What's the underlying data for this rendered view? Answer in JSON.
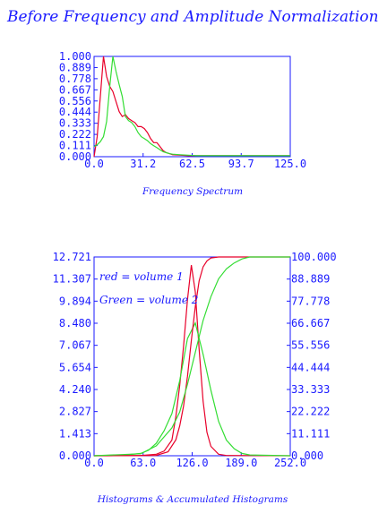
{
  "page_title": "Before Frequency and Amplitude Normalization",
  "colors": {
    "axis": "#1a1aff",
    "red": "#e8002a",
    "green": "#33dd33"
  },
  "chart_data": [
    {
      "type": "line",
      "title": "",
      "xlabel": "Frequency Spectrum",
      "ylabel": "",
      "xlim": [
        0,
        125
      ],
      "ylim": [
        0,
        1
      ],
      "x_ticks": [
        "0.0",
        "31.2",
        "62.5",
        "93.7",
        "125.0"
      ],
      "y_ticks": [
        "0.000",
        "0.111",
        "0.222",
        "0.333",
        "0.444",
        "0.556",
        "0.667",
        "0.778",
        "0.889",
        "1.000"
      ],
      "grid": false,
      "legend": "none",
      "series": [
        {
          "color": "#e8002a",
          "x": [
            0,
            2,
            4,
            6,
            8,
            10,
            12,
            14,
            16,
            18,
            20,
            22,
            24,
            26,
            28,
            30,
            32,
            34,
            36,
            38,
            40,
            42,
            44,
            46,
            48,
            50,
            55,
            60,
            65,
            70,
            80,
            90,
            100,
            110,
            125
          ],
          "y": [
            0.0,
            0.2,
            0.6,
            1.0,
            0.8,
            0.7,
            0.65,
            0.55,
            0.45,
            0.4,
            0.42,
            0.38,
            0.36,
            0.34,
            0.3,
            0.3,
            0.28,
            0.24,
            0.18,
            0.14,
            0.14,
            0.1,
            0.06,
            0.04,
            0.03,
            0.02,
            0.015,
            0.01,
            0.01,
            0.01,
            0.01,
            0.01,
            0.01,
            0.01,
            0.01
          ]
        },
        {
          "color": "#33dd33",
          "x": [
            0,
            2,
            4,
            6,
            8,
            10,
            12,
            14,
            16,
            18,
            20,
            22,
            24,
            26,
            28,
            30,
            32,
            34,
            36,
            38,
            40,
            42,
            44,
            46,
            48,
            50,
            55,
            60,
            65,
            70,
            80,
            90,
            100,
            110,
            125
          ],
          "y": [
            0.1,
            0.12,
            0.15,
            0.2,
            0.35,
            0.7,
            1.0,
            0.85,
            0.72,
            0.6,
            0.4,
            0.36,
            0.34,
            0.3,
            0.24,
            0.2,
            0.18,
            0.16,
            0.13,
            0.11,
            0.09,
            0.07,
            0.05,
            0.04,
            0.03,
            0.025,
            0.02,
            0.015,
            0.01,
            0.01,
            0.01,
            0.01,
            0.01,
            0.01,
            0.01
          ]
        }
      ]
    },
    {
      "type": "line",
      "title": "",
      "xlabel": "Histograms & Accumulated Histograms",
      "ylabel": "",
      "xlim": [
        0,
        252
      ],
      "ylim": [
        0,
        12.721
      ],
      "y2lim": [
        0,
        100
      ],
      "x_ticks": [
        "0.0",
        "63.0",
        "126.0",
        "189.0",
        "252.0"
      ],
      "y_ticks": [
        "0.000",
        "1.413",
        "2.827",
        "4.240",
        "5.654",
        "7.067",
        "8.480",
        "9.894",
        "11.307",
        "12.721"
      ],
      "y2_ticks": [
        "0.000",
        "11.111",
        "22.222",
        "33.333",
        "44.444",
        "55.556",
        "66.667",
        "77.778",
        "88.889",
        "100.000"
      ],
      "grid": false,
      "legend": "top-left",
      "legend_entries": [
        "red = volume 1",
        "Green = volume 2"
      ],
      "series": [
        {
          "name": "red = volume 1",
          "kind": "histogram",
          "color": "#e8002a",
          "x": [
            0,
            60,
            80,
            90,
            100,
            105,
            110,
            115,
            120,
            125,
            130,
            135,
            140,
            145,
            150,
            160,
            170,
            252
          ],
          "y": [
            0,
            0.02,
            0.1,
            0.3,
            1.0,
            2.5,
            4.5,
            7.0,
            10.0,
            12.2,
            10.5,
            6.8,
            3.5,
            1.5,
            0.6,
            0.1,
            0.02,
            0
          ]
        },
        {
          "name": "Green = volume 2",
          "kind": "histogram",
          "color": "#33dd33",
          "x": [
            0,
            40,
            60,
            70,
            80,
            90,
            100,
            110,
            120,
            130,
            140,
            150,
            160,
            170,
            180,
            190,
            200,
            252
          ],
          "y": [
            0,
            0.05,
            0.15,
            0.35,
            0.8,
            1.6,
            2.7,
            4.8,
            7.5,
            8.5,
            6.5,
            4.2,
            2.2,
            1.0,
            0.45,
            0.15,
            0.05,
            0
          ]
        },
        {
          "name": "red = volume 1",
          "kind": "accumulated",
          "axis": "right",
          "color": "#e8002a",
          "x": [
            0,
            80,
            95,
            105,
            110,
            115,
            120,
            125,
            130,
            135,
            140,
            145,
            150,
            160,
            252
          ],
          "y2": [
            0,
            0.2,
            2,
            8,
            15,
            25,
            40,
            58,
            75,
            88,
            95,
            98,
            99.5,
            100,
            100
          ]
        },
        {
          "name": "Green = volume 2",
          "kind": "accumulated",
          "axis": "right",
          "color": "#33dd33",
          "x": [
            0,
            60,
            80,
            100,
            110,
            120,
            130,
            140,
            150,
            160,
            170,
            180,
            190,
            200,
            252
          ],
          "y2": [
            0,
            1,
            5,
            14,
            22,
            36,
            52,
            68,
            80,
            89,
            94,
            97,
            99,
            100,
            100
          ]
        }
      ]
    }
  ]
}
